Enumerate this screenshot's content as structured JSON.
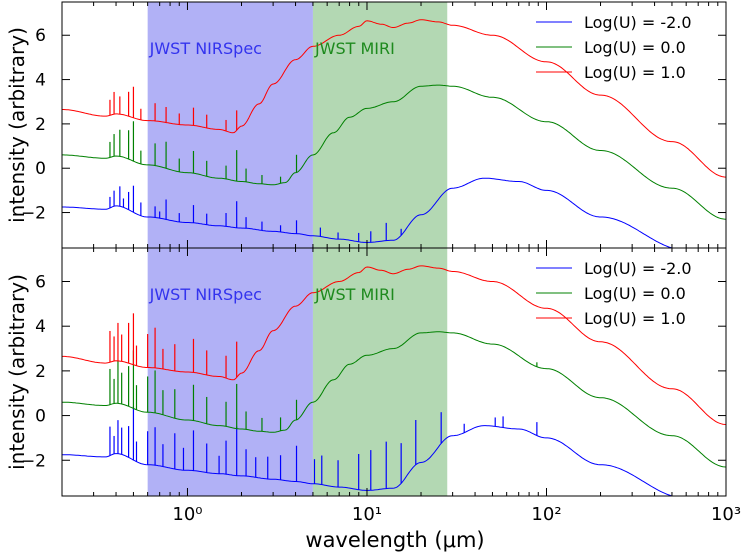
{
  "chart_data": [
    {
      "type": "line",
      "xscale": "log",
      "xlim": [
        0.2,
        1000
      ],
      "ylim": [
        -3.6,
        7.5
      ],
      "ylabel": "intensity (arbitrary)",
      "xlabel": "",
      "yticks": [
        -2,
        0,
        2,
        4,
        6
      ],
      "grid": false,
      "legend_position": "top-right",
      "bands": [
        {
          "label": "JWST NIRSpec",
          "x0": 0.6,
          "x1": 5.0,
          "color": "#b1b1f6",
          "label_color": "#3333ee"
        },
        {
          "label": "JWST MIRI",
          "x0": 5.0,
          "x1": 28.0,
          "color": "#b3d8b3",
          "label_color": "#1e8a1e"
        }
      ],
      "series": [
        {
          "name": "Log(U) = -2.0",
          "color": "#0000ff",
          "x": [
            0.2,
            0.35,
            0.4,
            0.6,
            1.0,
            1.5,
            2.0,
            3.0,
            4.0,
            5.0,
            7.0,
            10.0,
            14.0,
            20.0,
            30.0,
            45.0,
            70.0,
            100.0,
            200.0,
            600.0
          ],
          "y": [
            -1.75,
            -1.85,
            -1.7,
            -2.2,
            -2.45,
            -2.6,
            -2.7,
            -2.85,
            -2.95,
            -3.05,
            -3.2,
            -3.35,
            -3.25,
            -2.1,
            -0.9,
            -0.45,
            -0.6,
            -1.0,
            -2.2,
            -3.7
          ],
          "emission_lines": {
            "top": [
              [
                0.37,
                0.5
              ],
              [
                0.39,
                0.7
              ],
              [
                0.42,
                0.9
              ],
              [
                0.44,
                0.4
              ],
              [
                0.47,
                0.8
              ],
              [
                0.5,
                1.2
              ],
              [
                0.55,
                0.6
              ],
              [
                0.66,
                0.5
              ],
              [
                0.7,
                0.3
              ],
              [
                0.76,
                0.9
              ],
              [
                0.9,
                0.4
              ],
              [
                1.08,
                0.8
              ],
              [
                1.28,
                0.5
              ],
              [
                1.64,
                0.6
              ],
              [
                1.88,
                1.2
              ],
              [
                2.12,
                0.5
              ],
              [
                2.6,
                0.4
              ],
              [
                3.3,
                0.3
              ],
              [
                4.05,
                0.6
              ],
              [
                5.5,
                0.4
              ],
              [
                6.9,
                0.3
              ],
              [
                8.99,
                0.4
              ],
              [
                10.5,
                0.5
              ],
              [
                12.8,
                0.8
              ],
              [
                15.5,
                0.3
              ]
            ],
            "bottom": [
              [
                0.37,
                1.3
              ],
              [
                0.39,
                0.8
              ],
              [
                0.41,
                1.5
              ],
              [
                0.43,
                1.2
              ],
              [
                0.47,
                1.4
              ],
              [
                0.5,
                2.4
              ],
              [
                0.52,
                0.9
              ],
              [
                0.6,
                1.5
              ],
              [
                0.66,
                1.7
              ],
              [
                0.73,
                1.0
              ],
              [
                0.85,
                1.6
              ],
              [
                0.95,
                1.0
              ],
              [
                1.08,
                1.8
              ],
              [
                1.28,
                1.3
              ],
              [
                1.5,
                0.8
              ],
              [
                1.64,
                1.5
              ],
              [
                1.88,
                2.2
              ],
              [
                2.12,
                1.2
              ],
              [
                2.4,
                0.9
              ],
              [
                2.8,
                1.0
              ],
              [
                3.3,
                1.1
              ],
              [
                4.05,
                1.6
              ],
              [
                5.1,
                1.1
              ],
              [
                5.6,
                1.3
              ],
              [
                6.9,
                1.2
              ],
              [
                8.99,
                1.6
              ],
              [
                10.5,
                1.8
              ],
              [
                12.8,
                2.1
              ],
              [
                15.5,
                1.8
              ],
              [
                18.7,
                2.0
              ],
              [
                25.9,
                1.4
              ],
              [
                34.8,
                0.4
              ],
              [
                51.8,
                0.4
              ],
              [
                57.3,
                0.5
              ],
              [
                88.4,
                0.6
              ]
            ]
          }
        },
        {
          "name": "Log(U) =  0.0",
          "color": "#008000",
          "x": [
            0.2,
            0.35,
            0.4,
            0.6,
            1.0,
            1.5,
            2.0,
            2.5,
            3.0,
            3.5,
            4.0,
            5.0,
            6.5,
            8.0,
            10.0,
            14.0,
            20.0,
            25.0,
            30.0,
            50.0,
            100.0,
            200.0,
            500.0,
            1000.0
          ],
          "y": [
            0.6,
            0.45,
            0.55,
            0.15,
            -0.2,
            -0.45,
            -0.6,
            -0.7,
            -0.75,
            -0.65,
            -0.2,
            0.6,
            1.6,
            2.3,
            2.7,
            3.0,
            3.7,
            3.75,
            3.7,
            3.2,
            2.1,
            0.8,
            -0.9,
            -2.3
          ],
          "emission_lines": {
            "top": [
              [
                0.37,
                0.7
              ],
              [
                0.39,
                1.0
              ],
              [
                0.42,
                1.2
              ],
              [
                0.47,
                1.3
              ],
              [
                0.5,
                1.8
              ],
              [
                0.55,
                0.6
              ],
              [
                0.66,
                1.0
              ],
              [
                0.76,
                1.2
              ],
              [
                0.9,
                0.6
              ],
              [
                1.08,
                1.0
              ],
              [
                1.28,
                0.7
              ],
              [
                1.64,
                0.6
              ],
              [
                1.88,
                1.4
              ],
              [
                2.12,
                0.6
              ],
              [
                2.6,
                0.4
              ],
              [
                3.3,
                0.3
              ],
              [
                4.05,
                0.8
              ]
            ],
            "bottom": [
              [
                0.37,
                1.6
              ],
              [
                0.39,
                1.1
              ],
              [
                0.41,
                1.9
              ],
              [
                0.43,
                1.4
              ],
              [
                0.47,
                1.8
              ],
              [
                0.5,
                2.6
              ],
              [
                0.52,
                1.1
              ],
              [
                0.6,
                1.6
              ],
              [
                0.66,
                1.9
              ],
              [
                0.73,
                1.1
              ],
              [
                0.85,
                1.3
              ],
              [
                1.08,
                1.6
              ],
              [
                1.28,
                1.2
              ],
              [
                1.64,
                1.1
              ],
              [
                1.88,
                2.0
              ],
              [
                2.12,
                0.8
              ],
              [
                2.6,
                0.6
              ],
              [
                3.3,
                0.6
              ],
              [
                4.05,
                0.9
              ],
              [
                88.4,
                0.2
              ]
            ]
          }
        },
        {
          "name": "Log(U) =  1.0",
          "color": "#ff0000",
          "x": [
            0.2,
            0.35,
            0.4,
            0.6,
            1.0,
            1.5,
            1.8,
            2.0,
            2.5,
            3.0,
            4.0,
            5.0,
            7.0,
            9.0,
            10.0,
            12.0,
            14.0,
            17.0,
            20.0,
            25.0,
            30.0,
            50.0,
            100.0,
            200.0,
            500.0,
            1000.0
          ],
          "y": [
            2.65,
            2.35,
            2.45,
            2.15,
            1.95,
            1.75,
            1.6,
            1.9,
            2.9,
            3.8,
            4.9,
            5.5,
            6.0,
            6.4,
            6.65,
            6.5,
            6.35,
            6.55,
            6.7,
            6.6,
            6.45,
            6.0,
            4.8,
            3.3,
            1.2,
            -0.4
          ],
          "emission_lines": {
            "top": [
              [
                0.37,
                0.7
              ],
              [
                0.39,
                1.0
              ],
              [
                0.42,
                0.8
              ],
              [
                0.47,
                1.1
              ],
              [
                0.5,
                1.4
              ],
              [
                0.55,
                0.5
              ],
              [
                0.66,
                0.8
              ],
              [
                0.76,
                0.7
              ],
              [
                0.9,
                0.5
              ],
              [
                1.08,
                0.8
              ],
              [
                1.28,
                0.6
              ],
              [
                1.64,
                0.5
              ],
              [
                1.88,
                0.9
              ]
            ],
            "bottom": [
              [
                0.37,
                1.4
              ],
              [
                0.39,
                1.1
              ],
              [
                0.41,
                1.7
              ],
              [
                0.43,
                1.2
              ],
              [
                0.47,
                1.8
              ],
              [
                0.5,
                2.3
              ],
              [
                0.52,
                0.9
              ],
              [
                0.6,
                1.5
              ],
              [
                0.66,
                1.8
              ],
              [
                0.73,
                0.9
              ],
              [
                0.85,
                1.2
              ],
              [
                1.08,
                1.5
              ],
              [
                1.28,
                1.1
              ],
              [
                1.64,
                1.0
              ],
              [
                1.88,
                1.6
              ]
            ]
          }
        }
      ]
    }
  ],
  "panels": [
    {
      "ylabel": "intensity (arbitrary)",
      "lines_key": "top",
      "legend": [
        "Log(U) = -2.0",
        "Log(U) =  0.0",
        "Log(U) =  1.0"
      ],
      "band_labels": [
        "JWST NIRSpec",
        "JWST MIRI"
      ]
    },
    {
      "ylabel": "intensity (arbitrary)",
      "lines_key": "bottom",
      "legend": [
        "Log(U) = -2.0",
        "Log(U) =  0.0",
        "Log(U) =  1.0"
      ],
      "band_labels": [
        "JWST NIRSpec",
        "JWST MIRI"
      ]
    }
  ],
  "x_axis": {
    "label": "wavelength (μm)",
    "tick_values": [
      1,
      10,
      100,
      1000
    ],
    "tick_labels": [
      "10⁰",
      "10¹",
      "10²",
      "10³"
    ]
  },
  "colors": {
    "blue": "#0000ff",
    "green": "#008000",
    "red": "#ff0000"
  }
}
